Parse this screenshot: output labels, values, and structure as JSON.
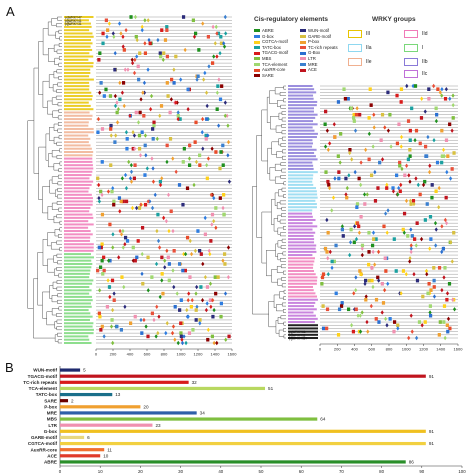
{
  "panels": {
    "a_label": "A",
    "b_label": "B"
  },
  "legend": {
    "title": "Cis-regulatory elements",
    "col1": [
      {
        "name": "ABRE",
        "color": "#1e8f1e"
      },
      {
        "name": "G-box",
        "color": "#2e7de0"
      },
      {
        "name": "CGTCA-motif",
        "color": "#ffd11a"
      },
      {
        "name": "TATC-box",
        "color": "#1aa0a0"
      },
      {
        "name": "TGACG-motif",
        "color": "#d81b1b"
      },
      {
        "name": "MBS",
        "color": "#7fbf3f"
      },
      {
        "name": "TCA-element",
        "color": "#a0d870"
      },
      {
        "name": "AuxRR-core",
        "color": "#e84b2a"
      },
      {
        "name": "SARE",
        "color": "#8b0000"
      }
    ],
    "col2": [
      {
        "name": "WUN-motif",
        "color": "#2b2b7a"
      },
      {
        "name": "GARE-motif",
        "color": "#d8c040"
      },
      {
        "name": "P-box",
        "color": "#f0a030"
      },
      {
        "name": "TC-rich repeats",
        "color": "#e8503a"
      },
      {
        "name": "G-Box",
        "color": "#2a6fd0"
      },
      {
        "name": "LTR",
        "color": "#f090b0"
      },
      {
        "name": "MRE",
        "color": "#3a7fcf"
      },
      {
        "name": "ACE",
        "color": "#c0141e"
      }
    ]
  },
  "wrky_groups": {
    "title": "WRKY groups",
    "items": [
      {
        "name": "III",
        "color": "#e8c400"
      },
      {
        "name": "IId",
        "color": "#f07ab8"
      },
      {
        "name": "IIa",
        "color": "#8fd8f0"
      },
      {
        "name": "I",
        "color": "#7ad87a"
      },
      {
        "name": "IIe",
        "color": "#f0b090"
      },
      {
        "name": "IIb",
        "color": "#8a7ad8"
      },
      {
        "name": "IIc",
        "color": "#c070d8"
      }
    ]
  },
  "left_gene_labels": [
    {
      "text": "pgWRKY47",
      "color": "#111111"
    },
    {
      "text": "pgWRKY41",
      "color": "#111111"
    },
    {
      "text": "pgWRKY31",
      "color": "#111111"
    }
  ],
  "right_gene_labels": [
    {
      "text": "pgWRKY61",
      "color": "#111111"
    },
    {
      "text": "pgWRKY11",
      "color": "#111111"
    },
    {
      "text": "pgWRKY117",
      "color": "#111111"
    }
  ],
  "map_axis": {
    "ticks": [
      "0",
      "200",
      "400",
      "600",
      "800",
      "1000",
      "1200",
      "1400",
      "1600"
    ]
  },
  "chart_data": {
    "type": "bar",
    "orientation": "horizontal",
    "categories": [
      "WUN-motif",
      "TGACG-motif",
      "TC-rich repeats",
      "TCA-element",
      "TATC-box",
      "SARE",
      "P-box",
      "MRE",
      "MBS",
      "LTR",
      "G-box",
      "GARE-motif",
      "CGTCA-motif",
      "AuxRR-core",
      "ACE",
      "ABRE"
    ],
    "values": [
      5,
      91,
      32,
      51,
      13,
      2,
      20,
      34,
      64,
      23,
      91,
      6,
      91,
      11,
      10,
      86
    ],
    "colors": [
      "#1f2a6e",
      "#c0141e",
      "#d81b1b",
      "#b8d860",
      "#1a6f8a",
      "#6b0000",
      "#f0a030",
      "#2e5fa8",
      "#7fbf3f",
      "#f090b0",
      "#f0c020",
      "#e8d880",
      "#f2d040",
      "#f07030",
      "#e03a2a",
      "#2a8f2a"
    ],
    "xlim": [
      0,
      100
    ],
    "ticks": [
      "0",
      "10",
      "20",
      "30",
      "40",
      "50",
      "60",
      "70",
      "80",
      "90",
      "100"
    ]
  }
}
